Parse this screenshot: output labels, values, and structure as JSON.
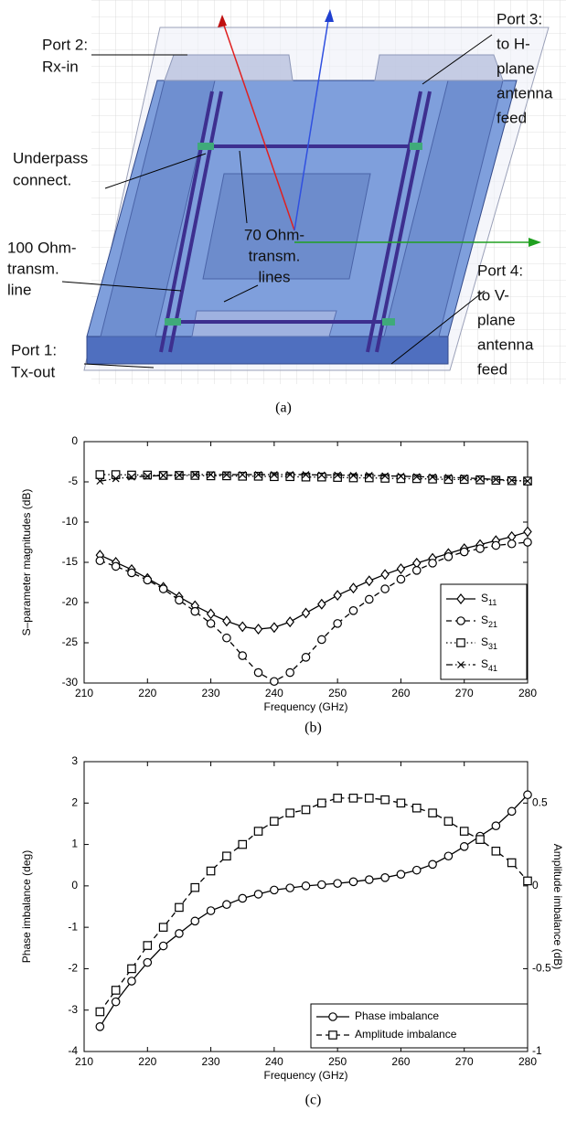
{
  "diagram": {
    "caption": "(a)",
    "labels": [
      {
        "lines": [
          "Port 2:",
          "Rx-in"
        ]
      },
      {
        "lines": [
          "Underpass",
          "connect."
        ]
      },
      {
        "lines": [
          "100 Ohm-",
          "transm.",
          "line"
        ]
      },
      {
        "lines": [
          "Port 1:",
          "Tx-out"
        ]
      },
      {
        "lines": [
          "70 Ohm-",
          "transm.",
          "lines"
        ]
      },
      {
        "lines": [
          "Port 3:",
          "to H-",
          "plane",
          "antenna",
          "feed"
        ]
      },
      {
        "lines": [
          "Port 4:",
          "to V-",
          "plane",
          "antenna",
          "feed"
        ]
      }
    ]
  },
  "chart_data": [
    {
      "type": "line",
      "caption": "(b)",
      "xlabel": "Frequency (GHz)",
      "ylabel": "S–parameter magnitudes (dB)",
      "xlim": [
        210,
        280
      ],
      "xticks": [
        210,
        220,
        230,
        240,
        250,
        260,
        270,
        280
      ],
      "ylim": [
        -30,
        0
      ],
      "yticks": [
        -30,
        -25,
        -20,
        -15,
        -10,
        -5,
        0
      ],
      "grid": false,
      "legend": "lower right",
      "x": [
        212.5,
        215,
        217.5,
        220,
        222.5,
        225,
        227.5,
        230,
        232.5,
        235,
        237.5,
        240,
        242.5,
        245,
        247.5,
        250,
        252.5,
        255,
        257.5,
        260,
        262.5,
        265,
        267.5,
        270,
        272.5,
        275,
        277.5,
        280
      ],
      "series": [
        {
          "name": "S11",
          "color": "#000000",
          "dash": "solid",
          "marker": "diamond",
          "values": [
            -14.1,
            -15,
            -15.9,
            -17,
            -18.1,
            -19.3,
            -20.4,
            -21.4,
            -22.3,
            -23,
            -23.3,
            -23.1,
            -22.4,
            -21.3,
            -20.2,
            -19.1,
            -18.2,
            -17.3,
            -16.5,
            -15.8,
            -15.1,
            -14.5,
            -13.9,
            -13.3,
            -12.8,
            -12.3,
            -11.8,
            -11.2
          ]
        },
        {
          "name": "S21",
          "color": "#000000",
          "dash": "dashed",
          "marker": "circle",
          "values": [
            -14.8,
            -15.5,
            -16.3,
            -17.2,
            -18.3,
            -19.7,
            -21.1,
            -22.6,
            -24.4,
            -26.6,
            -28.7,
            -29.8,
            -28.7,
            -26.8,
            -24.6,
            -22.6,
            -21,
            -19.6,
            -18.3,
            -17.1,
            -16,
            -15.1,
            -14.3,
            -13.7,
            -13.3,
            -12.9,
            -12.7,
            -12.5
          ]
        },
        {
          "name": "S31",
          "color": "#000000",
          "dash": "dotted",
          "marker": "square",
          "values": [
            -4.1,
            -4.1,
            -4.15,
            -4.15,
            -4.2,
            -4.2,
            -4.2,
            -4.25,
            -4.25,
            -4.3,
            -4.3,
            -4.35,
            -4.35,
            -4.4,
            -4.4,
            -4.45,
            -4.5,
            -4.5,
            -4.55,
            -4.6,
            -4.6,
            -4.65,
            -4.7,
            -4.7,
            -4.75,
            -4.8,
            -4.85,
            -4.9
          ]
        },
        {
          "name": "S41",
          "color": "#000000",
          "dash": "dashdot",
          "marker": "x",
          "values": [
            -4.9,
            -4.6,
            -4.4,
            -4.3,
            -4.2,
            -4.15,
            -4.1,
            -4.1,
            -4.1,
            -4.1,
            -4.1,
            -4.1,
            -4.1,
            -4.1,
            -4.15,
            -4.15,
            -4.2,
            -4.2,
            -4.25,
            -4.3,
            -4.35,
            -4.4,
            -4.45,
            -4.5,
            -4.6,
            -4.7,
            -4.8,
            -4.9
          ]
        }
      ]
    },
    {
      "type": "line",
      "caption": "(c)",
      "xlabel": "Frequency (GHz)",
      "ylabel": "Phase imbalance (deg)",
      "y2label": "Amplitude imbalance (dB)",
      "xlim": [
        210,
        280
      ],
      "xticks": [
        210,
        220,
        230,
        240,
        250,
        260,
        270,
        280
      ],
      "ylim": [
        -4,
        3
      ],
      "yticks": [
        -4,
        -3,
        -2,
        -1,
        0,
        1,
        2,
        3
      ],
      "y2lim": [
        -1,
        0.75
      ],
      "y2ticks": [
        -1,
        -0.5,
        0,
        0.5
      ],
      "grid": false,
      "legend": "lower right",
      "x": [
        212.5,
        215,
        217.5,
        220,
        222.5,
        225,
        227.5,
        230,
        232.5,
        235,
        237.5,
        240,
        242.5,
        245,
        247.5,
        250,
        252.5,
        255,
        257.5,
        260,
        262.5,
        265,
        267.5,
        270,
        272.5,
        275,
        277.5,
        280
      ],
      "series": [
        {
          "name": "Phase imbalance",
          "color": "#000000",
          "dash": "solid",
          "marker": "circle",
          "values": [
            -3.4,
            -2.8,
            -2.3,
            -1.85,
            -1.45,
            -1.15,
            -0.85,
            -0.6,
            -0.45,
            -0.3,
            -0.2,
            -0.1,
            -0.05,
            0,
            0.03,
            0.06,
            0.1,
            0.15,
            0.2,
            0.28,
            0.38,
            0.52,
            0.72,
            0.95,
            1.2,
            1.45,
            1.8,
            2.2
          ]
        },
        {
          "name": "Amplitude imbalance",
          "color": "#000000",
          "dash": "dashed",
          "marker": "square",
          "axis": "y2",
          "values": [
            -0.76,
            -0.63,
            -0.5,
            -0.36,
            -0.25,
            -0.13,
            -0.01,
            0.09,
            0.18,
            0.25,
            0.33,
            0.39,
            0.44,
            0.46,
            0.5,
            0.53,
            0.53,
            0.53,
            0.52,
            0.5,
            0.47,
            0.44,
            0.39,
            0.33,
            0.28,
            0.21,
            0.14,
            0.03
          ]
        }
      ]
    }
  ]
}
